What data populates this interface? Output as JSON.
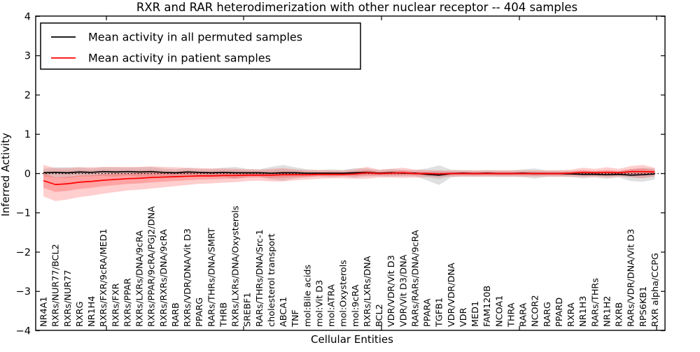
{
  "chart_data": {
    "type": "line",
    "title": "RXR and RAR heterodimerization with other nuclear receptor -- 404 samples",
    "xlabel": "Cellular Entities",
    "ylabel": "Inferred Activity",
    "ylim": [
      -4,
      4
    ],
    "yticks": [
      -4,
      -3,
      -2,
      -1,
      0,
      1,
      2,
      3,
      4
    ],
    "grid": false,
    "legend_position": "upper left",
    "zero_line_style": "dotted",
    "colors": {
      "permuted_line": "#000000",
      "patient_line": "#ff0000",
      "permuted_band": "#999999",
      "patient_band": "#ff4040",
      "axis": "#000000",
      "background": "#ffffff"
    },
    "categories": [
      "NR4A1",
      "RXRs/NUR77/BCL2",
      "RXRs/NUR77",
      "RXRG",
      "NR1H4",
      "RXRs/FXR/9cRA/MED1",
      "RXRs/FXR",
      "RXRs/PPAR",
      "RXRs/LXRs/DNA/9cRA",
      "RXRs/PPAR/9cRA/PGJ2/DNA",
      "RXRs/RXRs/DNA/9cRA",
      "RARB",
      "RXRs/VDR/DNA/Vit D3",
      "PPARG",
      "RARs/THRs/DNA/SMRT",
      "THRB",
      "RXRs/LXRs/DNA/Oxysterols",
      "SREBF1",
      "RARs/THRs/DNA/Src-1",
      "cholesterol transport",
      "ABCA1",
      "TNF",
      "mol:Bile acids",
      "mol:Vit D3",
      "mol:ATRA",
      "mol:Oxysterols",
      "mol:9cRA",
      "RXRs/LXRs/DNA",
      "BCL2",
      "VDR/VDR/Vit D3",
      "VDR/Vit D3/DNA",
      "RARs/RARs/DNA/9cRA",
      "PPARA",
      "TGFB1",
      "VDR/VDR/DNA",
      "VDR",
      "MED1",
      "FAM120B",
      "NCOA1",
      "THRA",
      "RARA",
      "NCOR2",
      "RARG",
      "PPARD",
      "RXRA",
      "NR1H3",
      "RARs/THRs",
      "NR1H2",
      "RXRB",
      "RARs/VDR/DNA/Vit D3",
      "RPS6KB1",
      "RXR alpha/CCPG"
    ],
    "series": [
      {
        "name": "Mean activity in all permuted samples",
        "color": "#000000",
        "values": [
          0.02,
          0.03,
          0.02,
          0.04,
          0.03,
          0.05,
          0.04,
          0.05,
          0.04,
          0.05,
          0.03,
          0.02,
          0.04,
          0.03,
          0.02,
          0.03,
          0.02,
          0.02,
          0.02,
          0.01,
          0.02,
          0.02,
          0.01,
          0.01,
          0.01,
          0.01,
          0.02,
          0.03,
          0.01,
          0.02,
          0.01,
          0.01,
          -0.02,
          -0.04,
          0.0,
          0.01,
          0.0,
          0.01,
          0.0,
          0.0,
          0.01,
          0.0,
          0.0,
          0.0,
          -0.01,
          -0.02,
          -0.02,
          -0.03,
          -0.02,
          -0.04,
          -0.03,
          -0.01
        ],
        "band_halfwidth": [
          0.1,
          0.13,
          0.14,
          0.12,
          0.1,
          0.11,
          0.12,
          0.1,
          0.12,
          0.12,
          0.1,
          0.09,
          0.1,
          0.09,
          0.1,
          0.12,
          0.15,
          0.1,
          0.09,
          0.16,
          0.2,
          0.14,
          0.1,
          0.08,
          0.1,
          0.08,
          0.12,
          0.1,
          0.08,
          0.1,
          0.08,
          0.08,
          0.15,
          0.25,
          0.1,
          0.08,
          0.08,
          0.08,
          0.08,
          0.08,
          0.1,
          0.13,
          0.08,
          0.08,
          0.08,
          0.1,
          0.08,
          0.1,
          0.08,
          0.15,
          0.18,
          0.14
        ]
      },
      {
        "name": "Mean activity in patient samples",
        "color": "#ff0000",
        "values": [
          -0.18,
          -0.28,
          -0.26,
          -0.22,
          -0.2,
          -0.17,
          -0.15,
          -0.13,
          -0.12,
          -0.1,
          -0.09,
          -0.08,
          -0.07,
          -0.06,
          -0.06,
          -0.05,
          -0.05,
          -0.04,
          -0.04,
          -0.04,
          -0.03,
          -0.03,
          -0.03,
          -0.02,
          -0.02,
          -0.02,
          -0.01,
          0.02,
          0.0,
          0.01,
          0.02,
          0.0,
          0.0,
          -0.01,
          0.0,
          0.0,
          0.0,
          0.0,
          0.0,
          0.0,
          0.0,
          0.0,
          0.0,
          0.0,
          0.01,
          0.03,
          0.02,
          0.03,
          0.02,
          0.05,
          0.05,
          0.04
        ],
        "band_halfwidth": [
          0.4,
          0.42,
          0.4,
          0.38,
          0.36,
          0.34,
          0.32,
          0.3,
          0.29,
          0.28,
          0.26,
          0.24,
          0.22,
          0.2,
          0.19,
          0.18,
          0.17,
          0.15,
          0.14,
          0.16,
          0.17,
          0.14,
          0.12,
          0.11,
          0.1,
          0.1,
          0.12,
          0.15,
          0.1,
          0.11,
          0.13,
          0.1,
          0.09,
          0.09,
          0.08,
          0.08,
          0.08,
          0.08,
          0.08,
          0.08,
          0.08,
          0.08,
          0.08,
          0.08,
          0.09,
          0.12,
          0.1,
          0.13,
          0.1,
          0.14,
          0.17,
          0.11
        ]
      }
    ]
  }
}
